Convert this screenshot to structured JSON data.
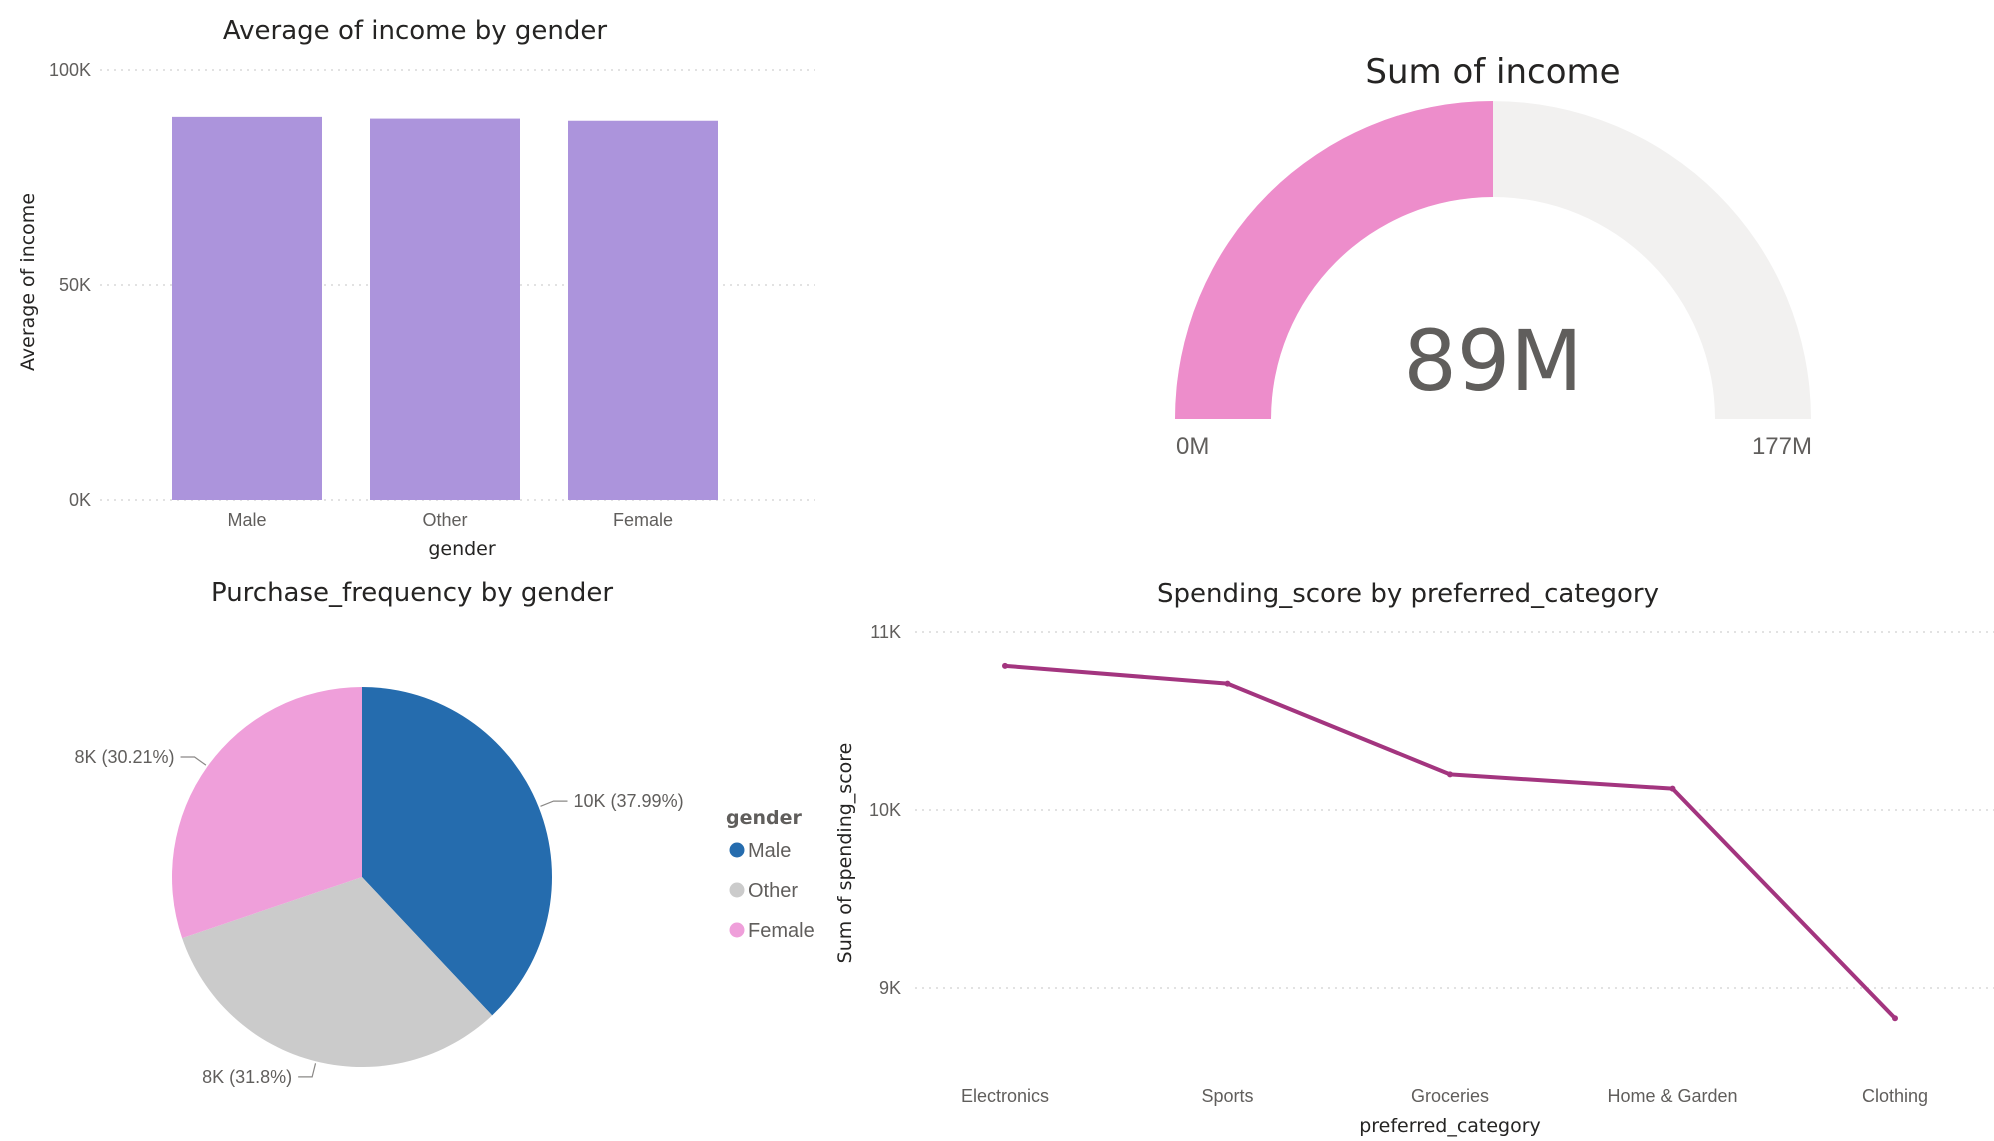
{
  "colors": {
    "bar": "#ac94dc",
    "gauge_fill": "#ed8dcb",
    "gauge_track": "#f2f1f0",
    "line": "#a3357f",
    "text_dark": "#252423",
    "text_muted": "#605e5c"
  },
  "chart_data": [
    {
      "type": "bar",
      "title": "Average of income by gender",
      "xlabel": "gender",
      "ylabel": "Average of income",
      "categories": [
        "Male",
        "Other",
        "Female"
      ],
      "values": [
        89100,
        88700,
        88200
      ],
      "ylim": [
        0,
        100000
      ],
      "yticks": [
        {
          "value": 0,
          "label": "0K"
        },
        {
          "value": 50000,
          "label": "50K"
        },
        {
          "value": 100000,
          "label": "100K"
        }
      ],
      "grid": true
    },
    {
      "type": "gauge",
      "title": "Sum of income",
      "value": 88.5,
      "value_label": "89M",
      "min": 0,
      "max": 177,
      "min_label": "0M",
      "max_label": "177M"
    },
    {
      "type": "pie",
      "title": "Purchase_frequency by gender",
      "legend_title": "gender",
      "legend_position": "right",
      "slices": [
        {
          "name": "Male",
          "percent": 37.99,
          "label": "10K (37.99%)",
          "color": "#256cae"
        },
        {
          "name": "Other",
          "percent": 31.8,
          "label": "8K (31.8%)",
          "color": "#cbcbcb"
        },
        {
          "name": "Female",
          "percent": 30.21,
          "label": "8K (30.21%)",
          "color": "#ef9fda"
        }
      ]
    },
    {
      "type": "line",
      "title": "Spending_score by preferred_category",
      "xlabel": "preferred_category",
      "ylabel": "Sum of spending_score",
      "categories": [
        "Electronics",
        "Sports",
        "Groceries",
        "Home & Garden",
        "Clothing"
      ],
      "values": [
        10810,
        10710,
        10200,
        10120,
        8830
      ],
      "ylim": [
        8700,
        11000
      ],
      "yticks": [
        {
          "value": 9000,
          "label": "9K"
        },
        {
          "value": 10000,
          "label": "10K"
        },
        {
          "value": 11000,
          "label": "11K"
        }
      ],
      "grid": true
    }
  ]
}
